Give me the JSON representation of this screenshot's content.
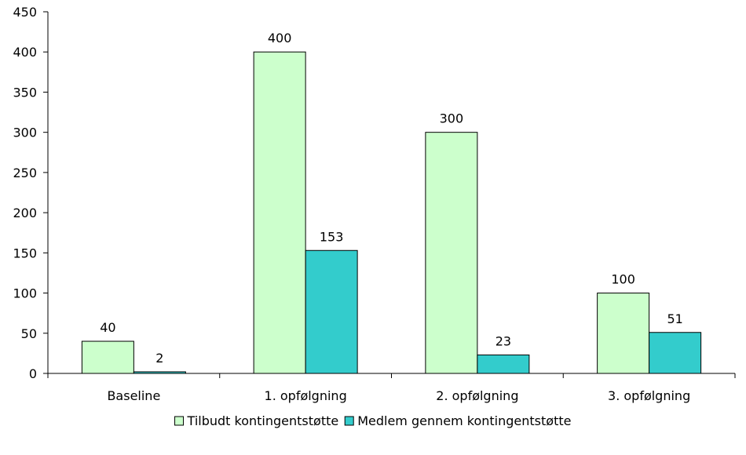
{
  "chart_data": {
    "type": "bar",
    "categories": [
      "Baseline",
      "1. opfølgning",
      "2. opfølgning",
      "3. opfølgning"
    ],
    "series": [
      {
        "name": "Tilbudt kontingentstøtte",
        "values": [
          40,
          400,
          300,
          100
        ],
        "color": "#ccffcc"
      },
      {
        "name": "Medlem gennem kontingentstøtte",
        "values": [
          2,
          153,
          23,
          51
        ],
        "color": "#33cccc"
      }
    ],
    "ylim": [
      0,
      450
    ],
    "yticks": [
      0,
      50,
      100,
      150,
      200,
      250,
      300,
      350,
      400,
      450
    ],
    "grid": false,
    "legend": "bottom",
    "title": "",
    "xlabel": "",
    "ylabel": ""
  }
}
